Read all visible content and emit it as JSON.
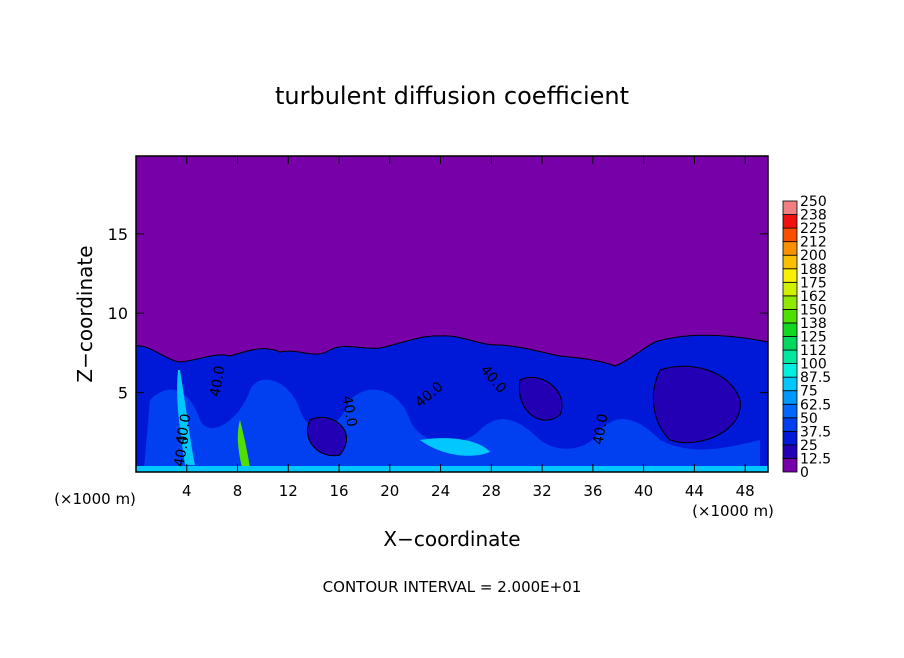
{
  "chart_data": {
    "type": "contour",
    "title": "turbulent diffusion coefficient",
    "xlabel": "X−coordinate",
    "ylabel": "Z−coordinate",
    "x_unit": "(×1000 m)",
    "y_unit": "(×1000 m)",
    "footnote": "CONTOUR INTERVAL = 2.000E+01",
    "xlim": [
      0,
      49.8
    ],
    "ylim": [
      0,
      19.9
    ],
    "xticks": [
      4,
      8,
      12,
      16,
      20,
      24,
      28,
      32,
      36,
      40,
      44,
      48
    ],
    "yticks": [
      5,
      10,
      15
    ],
    "contour_labels": [
      "40.0",
      "40.0",
      "40.0",
      "40.0",
      "40.0",
      "40.0",
      "40.0"
    ],
    "colorbar": {
      "levels": [
        0,
        12.5,
        25,
        37.5,
        50,
        62.5,
        75,
        87.5,
        100,
        {
          "value": 112.5,
          "label": "112"
        },
        125,
        {
          "value": 137.5,
          "label": "138"
        },
        150,
        {
          "value": 162.5,
          "label": "162"
        },
        175,
        {
          "value": 187.5,
          "label": "188"
        },
        200,
        {
          "value": 212.5,
          "label": "212"
        },
        225,
        {
          "value": 237.5,
          "label": "238"
        },
        250
      ],
      "colors": [
        "#7800a8",
        "#2400b4",
        "#0018d8",
        "#0040f0",
        "#0068ff",
        "#0098ff",
        "#00c8ff",
        "#00f0e0",
        "#00e8a0",
        "#00d860",
        "#10d820",
        "#50e000",
        "#90e800",
        "#d0f000",
        "#f8f000",
        "#f8c000",
        "#f89000",
        "#f85000",
        "#f01010",
        "#f08080"
      ]
    }
  }
}
